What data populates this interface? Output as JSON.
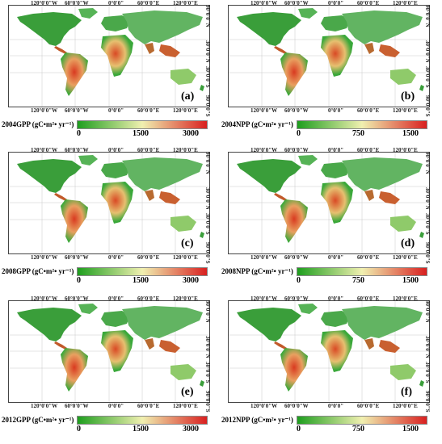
{
  "colors": {
    "low": "#1e9e1e",
    "mid": "#f0f0b0",
    "high": "#d92020"
  },
  "lon_labels_top": [
    "120°0'0\"W",
    "60°0'0\"W",
    "0°0'0\"",
    "60°0'0\"E",
    "120°0'0\"E"
  ],
  "lon_labels_bottom": [
    "120°0'0\"W",
    "60°0'0\"W",
    "0°0'0\"",
    "60°0'0\"E",
    "120°0'0\"E"
  ],
  "lat_labels": [
    "90°0'0\"N",
    "30°0'0\"N",
    "30°0'0\"S",
    "90°0'0\"S"
  ],
  "panels": [
    {
      "label": "(a)",
      "title": "2004GPP (gC•m²• yr⁻¹)",
      "ticks": [
        "0",
        "1500",
        "3000"
      ]
    },
    {
      "label": "(b)",
      "title": "2004NPP (gC•m²• yr⁻¹)",
      "ticks": [
        "0",
        "750",
        "1500"
      ]
    },
    {
      "label": "(c)",
      "title": "2008GPP (gC•m²• yr⁻¹)",
      "ticks": [
        "0",
        "1500",
        "3000"
      ]
    },
    {
      "label": "(d)",
      "title": "2008NPP (gC•m²• yr⁻¹)",
      "ticks": [
        "0",
        "750",
        "1500"
      ]
    },
    {
      "label": "(e)",
      "title": "2012GPP (gC•m²• yr⁻¹)",
      "ticks": [
        "0",
        "1500",
        "3000"
      ]
    },
    {
      "label": "(f)",
      "title": "2012NPP (gC•m²• yr⁻¹)",
      "ticks": [
        "0",
        "750",
        "1500"
      ]
    }
  ]
}
